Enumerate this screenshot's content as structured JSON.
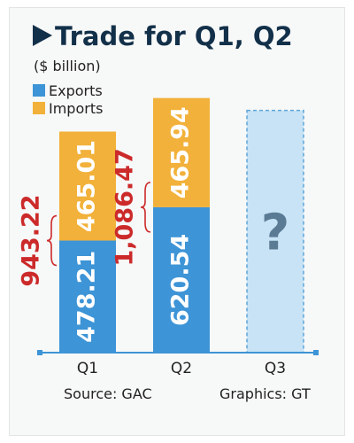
{
  "chart_data": {
    "type": "bar",
    "stacked": true,
    "title": "Trade for Q1, Q2",
    "subtitle": "($ billion)",
    "categories": [
      "Q1",
      "Q2",
      "Q3"
    ],
    "series": [
      {
        "name": "Exports",
        "values": [
          478.21,
          620.54,
          null
        ],
        "color": "#3d94d6"
      },
      {
        "name": "Imports",
        "values": [
          465.01,
          465.94,
          null
        ],
        "color": "#f2b13a"
      }
    ],
    "value_labels": {
      "exports": [
        "478.21",
        "620.54"
      ],
      "imports": [
        "465.01",
        "465.94"
      ],
      "totals": [
        "943.22",
        "1,086.47"
      ]
    },
    "pending_category": {
      "name": "Q3",
      "label": "?",
      "fill": "#c7e3f5",
      "border": "#5fa6d9"
    },
    "legend_position": "top-left",
    "grid": false,
    "source": "Source: GAC",
    "credit": "Graphics: GT",
    "colors": {
      "title": "#123049",
      "totals": "#cc2a2a",
      "axis": "#3d94d6",
      "value_text": "#ffffff"
    }
  }
}
